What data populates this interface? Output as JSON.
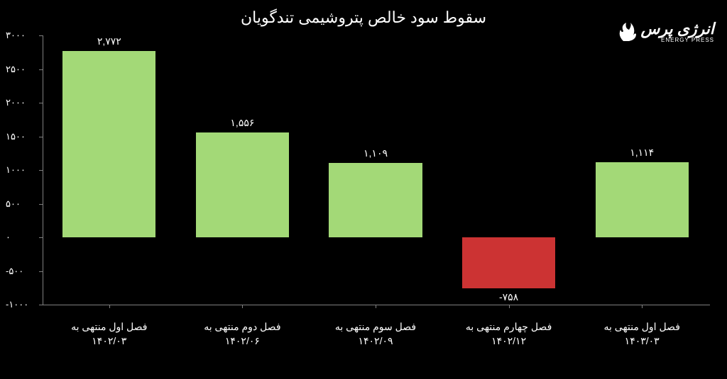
{
  "title": "سقوط سود خالص پتروشیمی تندگویان",
  "logo": {
    "main": "انرژی پرس",
    "sub": "ENERGY PRESS"
  },
  "chart": {
    "type": "bar",
    "background_color": "#000000",
    "positive_color": "#a3d977",
    "negative_color": "#cc3333",
    "axis_color": "#808080",
    "text_color": "#ffffff",
    "title_fontsize": 22,
    "label_fontsize": 14,
    "axis_fontsize": 13,
    "ylim": [
      -1000,
      3000
    ],
    "ytick_step": 500,
    "bar_width_ratio": 0.7,
    "y_ticks": [
      {
        "value": 3000,
        "label": "۳۰۰۰"
      },
      {
        "value": 2500,
        "label": "۲۵۰۰"
      },
      {
        "value": 2000,
        "label": "۲۰۰۰"
      },
      {
        "value": 1500,
        "label": "۱۵۰۰"
      },
      {
        "value": 1000,
        "label": "۱۰۰۰"
      },
      {
        "value": 500,
        "label": "۵۰۰"
      },
      {
        "value": 0,
        "label": "۰"
      },
      {
        "value": -500,
        "label": "-۵۰۰"
      },
      {
        "value": -1000,
        "label": "-۱۰۰۰"
      }
    ],
    "categories": [
      {
        "label_line1": "فصل اول منتهی به",
        "label_line2": "۱۴۰۲/۰۳",
        "value": 2772,
        "value_label": "۲,۷۷۲"
      },
      {
        "label_line1": "فصل دوم منتهی به",
        "label_line2": "۱۴۰۲/۰۶",
        "value": 1556,
        "value_label": "۱,۵۵۶"
      },
      {
        "label_line1": "فصل سوم منتهی به",
        "label_line2": "۱۴۰۲/۰۹",
        "value": 1109,
        "value_label": "۱,۱۰۹"
      },
      {
        "label_line1": "فصل چهارم منتهی به",
        "label_line2": "۱۴۰۲/۱۲",
        "value": -758,
        "value_label": "-۷۵۸"
      },
      {
        "label_line1": "فصل اول منتهی به",
        "label_line2": "۱۴۰۳/۰۳",
        "value": 1114,
        "value_label": "۱,۱۱۴"
      }
    ]
  }
}
